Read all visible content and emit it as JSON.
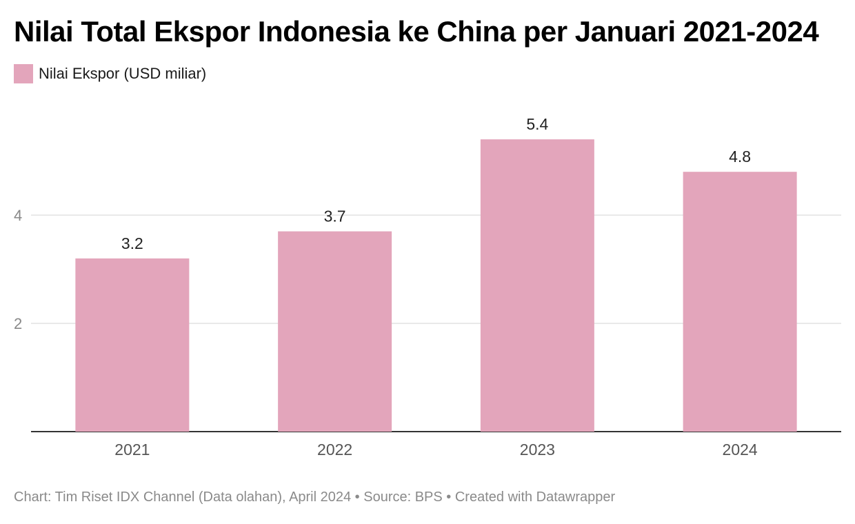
{
  "chart_data": {
    "type": "bar",
    "title": "Nilai Total Ekspor Indonesia ke China per Januari 2021-2024",
    "categories": [
      "2021",
      "2022",
      "2023",
      "2024"
    ],
    "series": [
      {
        "name": "Nilai Ekspor (USD miliar)",
        "values": [
          3.2,
          3.7,
          5.4,
          4.8
        ],
        "color": "#e3a5bb"
      }
    ],
    "value_labels": [
      "3.2",
      "3.7",
      "5.4",
      "4.8"
    ],
    "yticks": [
      2,
      4
    ],
    "ylim": [
      0,
      5.85
    ],
    "xlabel": "",
    "ylabel": "",
    "grid": true,
    "legend_position": "top-left",
    "gridline_color": "#e2e2e2",
    "baseline_color": "#333333"
  },
  "footer": "Chart: Tim Riset IDX Channel (Data olahan), April 2024 • Source: BPS • Created with Datawrapper"
}
